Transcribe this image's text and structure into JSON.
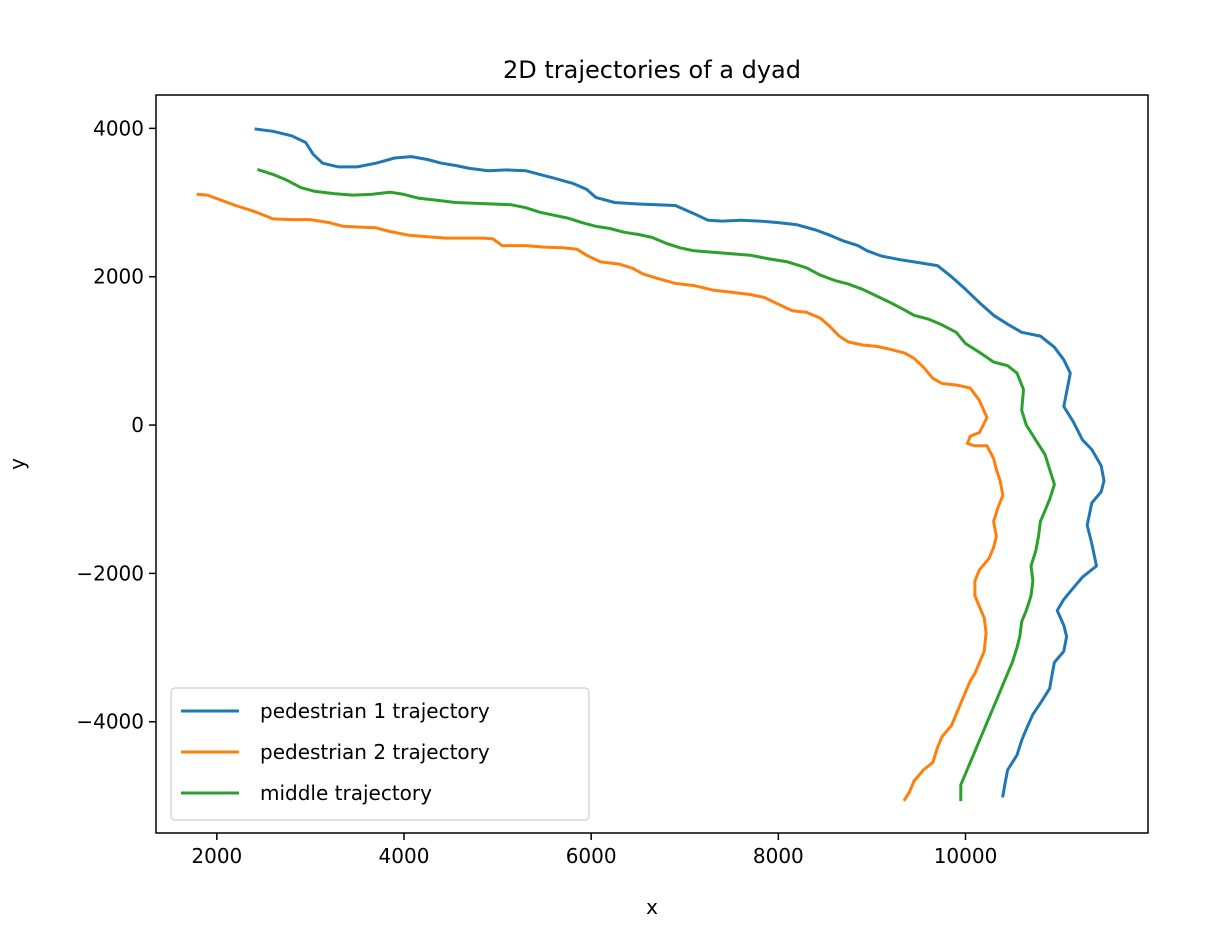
{
  "chart_data": {
    "type": "line",
    "title": "2D trajectories of a dyad",
    "xlabel": "x",
    "ylabel": "y",
    "xlim": [
      1350,
      11950
    ],
    "ylim": [
      -5500,
      4450
    ],
    "xticks": [
      2000,
      4000,
      6000,
      8000,
      10000
    ],
    "yticks": [
      -4000,
      -2000,
      0,
      2000,
      4000
    ],
    "xtick_labels": [
      "2000",
      "4000",
      "6000",
      "8000",
      "10000"
    ],
    "ytick_labels": [
      "−4000",
      "−2000",
      "0",
      "2000",
      "4000"
    ],
    "grid": false,
    "legend_position": "lower-left",
    "series": [
      {
        "name": "pedestrian 1 trajectory",
        "color": "#1f77b4",
        "points": [
          [
            2420,
            3990
          ],
          [
            2600,
            3960
          ],
          [
            2800,
            3900
          ],
          [
            2950,
            3810
          ],
          [
            3030,
            3650
          ],
          [
            3130,
            3530
          ],
          [
            3300,
            3480
          ],
          [
            3500,
            3480
          ],
          [
            3700,
            3530
          ],
          [
            3900,
            3600
          ],
          [
            4080,
            3620
          ],
          [
            4250,
            3580
          ],
          [
            4400,
            3530
          ],
          [
            4550,
            3500
          ],
          [
            4700,
            3460
          ],
          [
            4900,
            3430
          ],
          [
            5100,
            3440
          ],
          [
            5300,
            3430
          ],
          [
            5450,
            3380
          ],
          [
            5600,
            3330
          ],
          [
            5800,
            3260
          ],
          [
            5950,
            3180
          ],
          [
            6050,
            3070
          ],
          [
            6250,
            3000
          ],
          [
            6500,
            2980
          ],
          [
            6700,
            2970
          ],
          [
            6900,
            2960
          ],
          [
            7100,
            2850
          ],
          [
            7250,
            2760
          ],
          [
            7400,
            2750
          ],
          [
            7600,
            2760
          ],
          [
            7800,
            2750
          ],
          [
            8000,
            2730
          ],
          [
            8200,
            2700
          ],
          [
            8400,
            2630
          ],
          [
            8550,
            2560
          ],
          [
            8700,
            2480
          ],
          [
            8850,
            2420
          ],
          [
            8950,
            2350
          ],
          [
            9100,
            2280
          ],
          [
            9300,
            2230
          ],
          [
            9500,
            2190
          ],
          [
            9700,
            2150
          ],
          [
            9850,
            2000
          ],
          [
            10000,
            1830
          ],
          [
            10150,
            1650
          ],
          [
            10300,
            1480
          ],
          [
            10450,
            1360
          ],
          [
            10600,
            1250
          ],
          [
            10800,
            1200
          ],
          [
            10950,
            1050
          ],
          [
            11050,
            880
          ],
          [
            11120,
            700
          ],
          [
            11050,
            250
          ],
          [
            11150,
            50
          ],
          [
            11250,
            -200
          ],
          [
            11350,
            -330
          ],
          [
            11450,
            -550
          ],
          [
            11480,
            -750
          ],
          [
            11450,
            -900
          ],
          [
            11350,
            -1050
          ],
          [
            11300,
            -1350
          ],
          [
            11350,
            -1600
          ],
          [
            11400,
            -1900
          ],
          [
            11250,
            -2050
          ],
          [
            11150,
            -2200
          ],
          [
            11050,
            -2350
          ],
          [
            10980,
            -2500
          ],
          [
            11050,
            -2700
          ],
          [
            11080,
            -2850
          ],
          [
            11050,
            -3050
          ],
          [
            10950,
            -3200
          ],
          [
            10920,
            -3400
          ],
          [
            10900,
            -3550
          ],
          [
            10800,
            -3750
          ],
          [
            10720,
            -3900
          ],
          [
            10650,
            -4100
          ],
          [
            10600,
            -4250
          ],
          [
            10550,
            -4450
          ],
          [
            10450,
            -4650
          ],
          [
            10420,
            -4850
          ],
          [
            10400,
            -5000
          ]
        ]
      },
      {
        "name": "pedestrian 2 trajectory",
        "color": "#ff7f0e",
        "points": [
          [
            1800,
            3110
          ],
          [
            1900,
            3100
          ],
          [
            2050,
            3030
          ],
          [
            2200,
            2960
          ],
          [
            2400,
            2880
          ],
          [
            2600,
            2780
          ],
          [
            2800,
            2770
          ],
          [
            3000,
            2770
          ],
          [
            3200,
            2730
          ],
          [
            3350,
            2680
          ],
          [
            3500,
            2670
          ],
          [
            3700,
            2660
          ],
          [
            3850,
            2610
          ],
          [
            4050,
            2560
          ],
          [
            4250,
            2540
          ],
          [
            4450,
            2520
          ],
          [
            4650,
            2520
          ],
          [
            4850,
            2520
          ],
          [
            4950,
            2510
          ],
          [
            5050,
            2420
          ],
          [
            5300,
            2420
          ],
          [
            5500,
            2400
          ],
          [
            5700,
            2390
          ],
          [
            5850,
            2370
          ],
          [
            5950,
            2290
          ],
          [
            6100,
            2200
          ],
          [
            6300,
            2170
          ],
          [
            6450,
            2110
          ],
          [
            6550,
            2040
          ],
          [
            6700,
            1980
          ],
          [
            6900,
            1910
          ],
          [
            7100,
            1880
          ],
          [
            7300,
            1820
          ],
          [
            7500,
            1790
          ],
          [
            7700,
            1760
          ],
          [
            7850,
            1720
          ],
          [
            8000,
            1630
          ],
          [
            8150,
            1540
          ],
          [
            8300,
            1520
          ],
          [
            8450,
            1440
          ],
          [
            8550,
            1330
          ],
          [
            8650,
            1200
          ],
          [
            8750,
            1120
          ],
          [
            8900,
            1080
          ],
          [
            9050,
            1060
          ],
          [
            9200,
            1020
          ],
          [
            9350,
            970
          ],
          [
            9450,
            900
          ],
          [
            9550,
            780
          ],
          [
            9650,
            630
          ],
          [
            9750,
            560
          ],
          [
            9900,
            540
          ],
          [
            10050,
            500
          ],
          [
            10150,
            330
          ],
          [
            10230,
            100
          ],
          [
            10150,
            -100
          ],
          [
            10050,
            -150
          ],
          [
            10020,
            -250
          ],
          [
            10100,
            -280
          ],
          [
            10230,
            -280
          ],
          [
            10300,
            -450
          ],
          [
            10330,
            -600
          ],
          [
            10370,
            -750
          ],
          [
            10400,
            -950
          ],
          [
            10350,
            -1100
          ],
          [
            10300,
            -1300
          ],
          [
            10330,
            -1500
          ],
          [
            10300,
            -1650
          ],
          [
            10250,
            -1800
          ],
          [
            10150,
            -1950
          ],
          [
            10100,
            -2100
          ],
          [
            10100,
            -2300
          ],
          [
            10150,
            -2450
          ],
          [
            10200,
            -2600
          ],
          [
            10220,
            -2800
          ],
          [
            10200,
            -3050
          ],
          [
            10150,
            -3200
          ],
          [
            10100,
            -3350
          ],
          [
            10050,
            -3450
          ],
          [
            10000,
            -3600
          ],
          [
            9950,
            -3750
          ],
          [
            9900,
            -3900
          ],
          [
            9850,
            -4050
          ],
          [
            9750,
            -4200
          ],
          [
            9700,
            -4350
          ],
          [
            9650,
            -4550
          ],
          [
            9550,
            -4650
          ],
          [
            9450,
            -4800
          ],
          [
            9400,
            -4950
          ],
          [
            9350,
            -5050
          ]
        ]
      },
      {
        "name": "middle trajectory",
        "color": "#2ca02c",
        "points": [
          [
            2450,
            3440
          ],
          [
            2600,
            3380
          ],
          [
            2750,
            3300
          ],
          [
            2900,
            3200
          ],
          [
            3050,
            3150
          ],
          [
            3250,
            3120
          ],
          [
            3450,
            3100
          ],
          [
            3650,
            3110
          ],
          [
            3850,
            3140
          ],
          [
            4000,
            3110
          ],
          [
            4150,
            3060
          ],
          [
            4350,
            3030
          ],
          [
            4550,
            3000
          ],
          [
            4750,
            2990
          ],
          [
            4950,
            2980
          ],
          [
            5150,
            2970
          ],
          [
            5300,
            2930
          ],
          [
            5450,
            2870
          ],
          [
            5600,
            2830
          ],
          [
            5750,
            2790
          ],
          [
            5900,
            2730
          ],
          [
            6050,
            2680
          ],
          [
            6200,
            2650
          ],
          [
            6350,
            2600
          ],
          [
            6500,
            2570
          ],
          [
            6650,
            2530
          ],
          [
            6800,
            2450
          ],
          [
            6950,
            2390
          ],
          [
            7100,
            2350
          ],
          [
            7300,
            2330
          ],
          [
            7500,
            2310
          ],
          [
            7700,
            2290
          ],
          [
            7900,
            2240
          ],
          [
            8100,
            2200
          ],
          [
            8300,
            2120
          ],
          [
            8450,
            2020
          ],
          [
            8600,
            1950
          ],
          [
            8750,
            1900
          ],
          [
            8900,
            1830
          ],
          [
            9050,
            1740
          ],
          [
            9200,
            1650
          ],
          [
            9350,
            1550
          ],
          [
            9450,
            1480
          ],
          [
            9600,
            1430
          ],
          [
            9750,
            1350
          ],
          [
            9900,
            1250
          ],
          [
            10000,
            1100
          ],
          [
            10150,
            980
          ],
          [
            10300,
            850
          ],
          [
            10450,
            800
          ],
          [
            10550,
            700
          ],
          [
            10620,
            480
          ],
          [
            10600,
            200
          ],
          [
            10650,
            0
          ],
          [
            10750,
            -200
          ],
          [
            10850,
            -400
          ],
          [
            10900,
            -600
          ],
          [
            10950,
            -800
          ],
          [
            10900,
            -1000
          ],
          [
            10850,
            -1150
          ],
          [
            10800,
            -1300
          ],
          [
            10780,
            -1500
          ],
          [
            10750,
            -1700
          ],
          [
            10700,
            -1900
          ],
          [
            10720,
            -2100
          ],
          [
            10700,
            -2300
          ],
          [
            10650,
            -2500
          ],
          [
            10600,
            -2650
          ],
          [
            10580,
            -2850
          ],
          [
            10550,
            -3000
          ],
          [
            10500,
            -3200
          ],
          [
            10450,
            -3350
          ],
          [
            10400,
            -3500
          ],
          [
            10350,
            -3650
          ],
          [
            10300,
            -3800
          ],
          [
            10250,
            -3950
          ],
          [
            10200,
            -4100
          ],
          [
            10150,
            -4250
          ],
          [
            10100,
            -4400
          ],
          [
            10050,
            -4550
          ],
          [
            10000,
            -4700
          ],
          [
            9950,
            -4850
          ],
          [
            9950,
            -5050
          ]
        ]
      }
    ]
  }
}
